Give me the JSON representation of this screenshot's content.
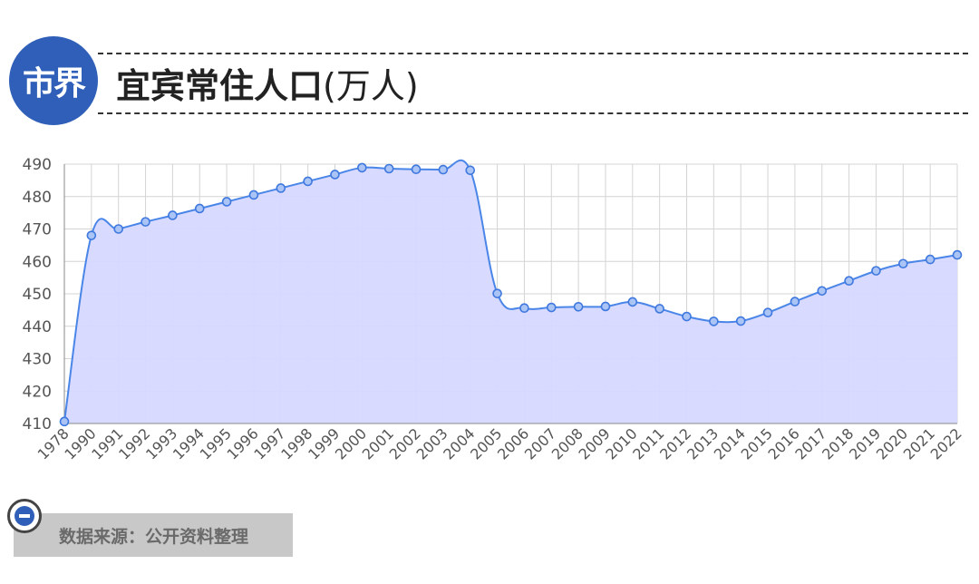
{
  "header": {
    "logo_text": "市界",
    "title": "宜宾常住人口",
    "title_unit": "(万人)"
  },
  "footer": {
    "source_text": "数据来源：公开资料整理"
  },
  "colors": {
    "brand": "#2f5fb8",
    "line": "#4a86e8",
    "area": "#d6d8ff"
  },
  "chart_data": {
    "type": "area",
    "title": "宜宾常住人口(万人)",
    "x": [
      "1978",
      "1990",
      "1991",
      "1992",
      "1993",
      "1994",
      "1995",
      "1996",
      "1997",
      "1998",
      "1999",
      "2000",
      "2001",
      "2002",
      "2003",
      "2004",
      "2005",
      "2006",
      "2007",
      "2008",
      "2009",
      "2010",
      "2011",
      "2012",
      "2013",
      "2014",
      "2015",
      "2016",
      "2017",
      "2018",
      "2019",
      "2020",
      "2021",
      "2022"
    ],
    "series": [
      {
        "values": [
          410.6,
          468,
          470,
          472.2,
          474.2,
          476.3,
          478.4,
          480.5,
          482.6,
          484.7,
          486.8,
          488.9,
          488.6,
          488.4,
          488.3,
          488.1,
          450.1,
          445.6,
          445.8,
          446,
          446.1,
          447.5,
          445.4,
          443,
          441.5,
          441.6,
          444.2,
          447.6,
          450.9,
          454,
          457.1,
          459.3,
          460.6,
          462
        ]
      }
    ],
    "ylim": [
      410,
      490
    ],
    "yticks": [
      410,
      420,
      430,
      440,
      450,
      460,
      470,
      480,
      490
    ],
    "grid": true,
    "legend": "none"
  }
}
